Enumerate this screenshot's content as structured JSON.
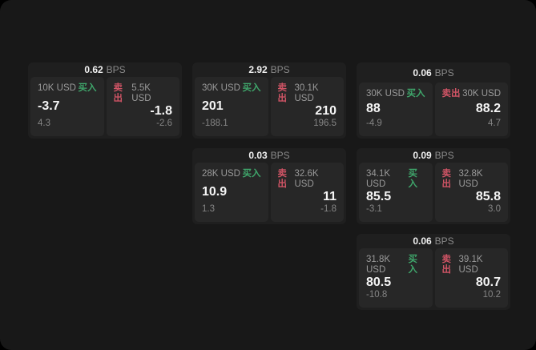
{
  "colors": {
    "buy_green": "#3fa66b",
    "sell_red": "#cf5465",
    "page_bg": "#181818",
    "card_bg": "#1f1f1f",
    "panel_bg": "#272727"
  },
  "labels": {
    "bps": "BPS",
    "buy": "买入",
    "sell": "卖出"
  },
  "cards": [
    {
      "bps": "0.62",
      "buy": {
        "size": "10K USD",
        "price": "-3.7",
        "delta": "4.3"
      },
      "sell": {
        "size": "5.5K USD",
        "price": "-1.8",
        "delta": "-2.6"
      }
    },
    {
      "bps": "2.92",
      "buy": {
        "size": "30K USD",
        "price": "201",
        "delta": "-188.1"
      },
      "sell": {
        "size": "30.1K USD",
        "price": "210",
        "delta": "196.5"
      }
    },
    {
      "bps": "0.06",
      "buy": {
        "size": "30K USD",
        "price": "88",
        "delta": "-4.9"
      },
      "sell": {
        "size": "30K USD",
        "price": "88.2",
        "delta": "4.7"
      }
    },
    {
      "bps": "0.03",
      "buy": {
        "size": "28K USD",
        "price": "10.9",
        "delta": "1.3"
      },
      "sell": {
        "size": "32.6K USD",
        "price": "11",
        "delta": "-1.8"
      }
    },
    {
      "bps": "0.09",
      "buy": {
        "size": "34.1K USD",
        "price": "85.5",
        "delta": "-3.1"
      },
      "sell": {
        "size": "32.8K USD",
        "price": "85.8",
        "delta": "3.0"
      }
    },
    {
      "bps": "0.06",
      "buy": {
        "size": "31.8K USD",
        "price": "80.5",
        "delta": "-10.8"
      },
      "sell": {
        "size": "39.1K USD",
        "price": "80.7",
        "delta": "10.2"
      }
    }
  ]
}
